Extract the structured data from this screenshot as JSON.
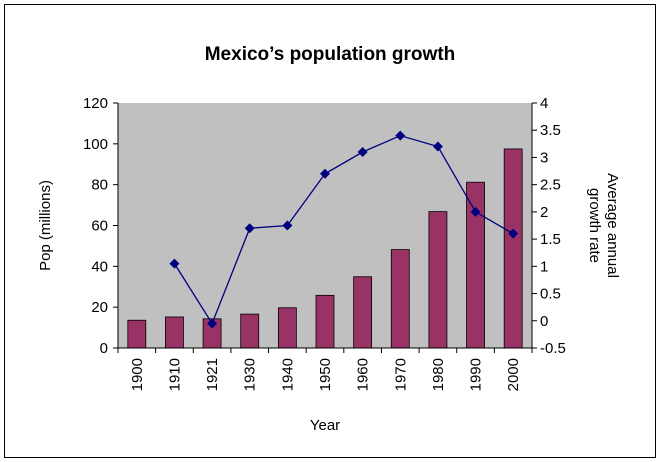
{
  "chart_data": {
    "type": "bar",
    "title": "Mexico’s population growth",
    "xlabel": "Year",
    "ylabel": "Pop (millions)",
    "y2label_lines": [
      "Average annual",
      "growth rate"
    ],
    "categories": [
      "1900",
      "1910",
      "1921",
      "1930",
      "1940",
      "1950",
      "1960",
      "1970",
      "1980",
      "1990",
      "2000"
    ],
    "ylim": [
      0,
      120
    ],
    "yticks": [
      "0",
      "20",
      "40",
      "60",
      "80",
      "100",
      "120"
    ],
    "y2lim": [
      -0.5,
      4
    ],
    "y2ticks": [
      "-0.5",
      "0",
      "0.5",
      "1",
      "1.5",
      "2",
      "2.5",
      "3",
      "3.5",
      "4"
    ],
    "grid": false,
    "plot_background": "#c0c0c0",
    "series": [
      {
        "type": "bar",
        "axis": "left",
        "color": "#993366",
        "values": [
          13.6,
          15.2,
          14.3,
          16.6,
          19.7,
          25.8,
          34.9,
          48.2,
          66.8,
          81.2,
          97.5
        ]
      },
      {
        "type": "line",
        "axis": "right",
        "color": "#000080",
        "marker": "diamond",
        "values": [
          null,
          1.05,
          -0.05,
          1.7,
          1.75,
          2.7,
          3.1,
          3.4,
          3.2,
          2.0,
          1.6
        ]
      }
    ]
  }
}
